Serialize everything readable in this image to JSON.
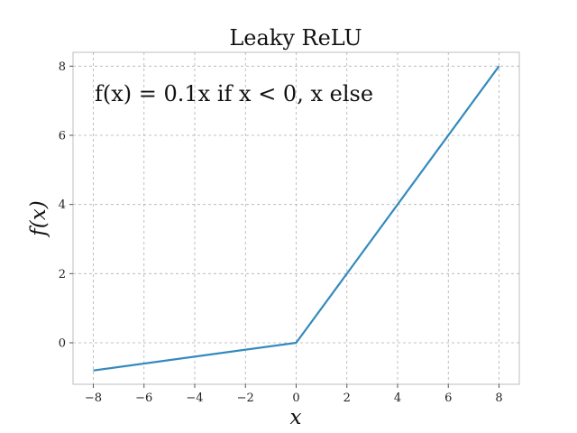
{
  "chart_data": {
    "type": "line",
    "title": "Leaky ReLU",
    "xlabel": "x",
    "ylabel": "f(x)",
    "annotation": "f(x) = 0.1x if x < 0, x else",
    "xlim": [
      -8.8,
      8.8
    ],
    "ylim": [
      -1.2,
      8.4
    ],
    "xticks": [
      -8,
      -6,
      -4,
      -2,
      0,
      2,
      4,
      6,
      8
    ],
    "yticks": [
      0,
      2,
      4,
      6,
      8
    ],
    "grid": true,
    "series": [
      {
        "x": [
          -8,
          0,
          8
        ],
        "y": [
          -0.8,
          0,
          8
        ],
        "color": "#348abd"
      }
    ]
  }
}
